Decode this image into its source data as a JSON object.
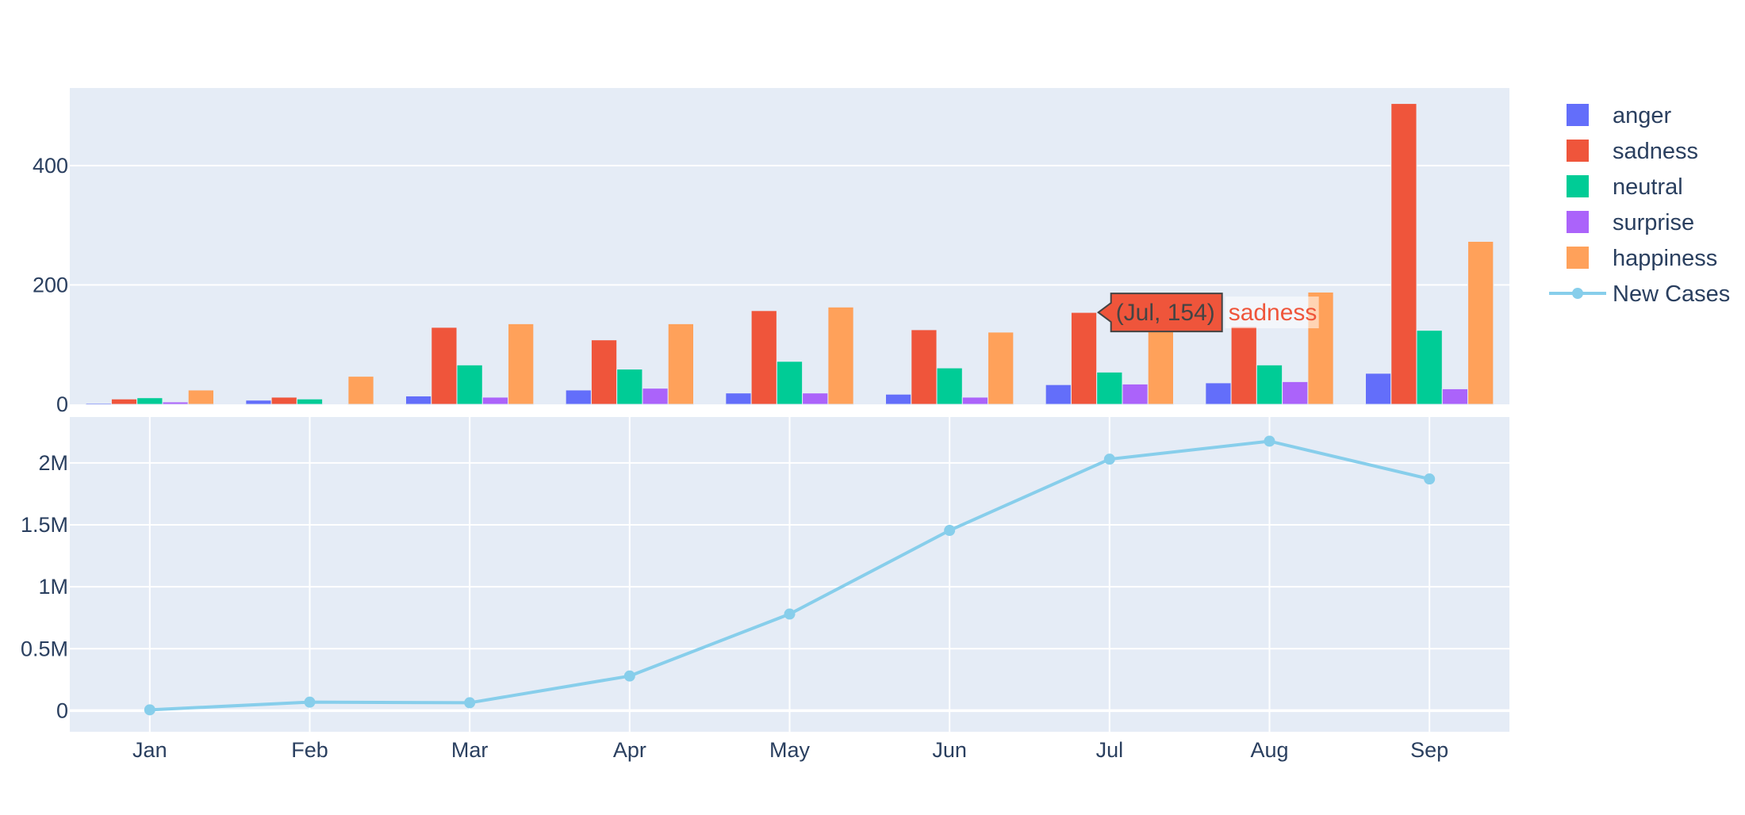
{
  "chart_data": [
    {
      "type": "bar",
      "categories": [
        "Jan",
        "Feb",
        "Mar",
        "Apr",
        "May",
        "Jun",
        "Jul",
        "Aug",
        "Sep"
      ],
      "series": [
        {
          "name": "anger",
          "color": "#636efa",
          "values": [
            2,
            7,
            14,
            24,
            19,
            17,
            33,
            36,
            52
          ]
        },
        {
          "name": "sadness",
          "color": "#ef553b",
          "values": [
            9,
            12,
            129,
            108,
            157,
            125,
            154,
            130,
            504
          ]
        },
        {
          "name": "neutral",
          "color": "#00cc96",
          "values": [
            11,
            9,
            66,
            59,
            72,
            61,
            54,
            66,
            124
          ]
        },
        {
          "name": "surprise",
          "color": "#ab63fa",
          "values": [
            4,
            0,
            12,
            27,
            19,
            12,
            34,
            38,
            26
          ]
        },
        {
          "name": "happiness",
          "color": "#ffa15a",
          "values": [
            24,
            47,
            135,
            135,
            163,
            121,
            130,
            188,
            273
          ]
        }
      ],
      "yticks": [
        "0",
        "200",
        "400"
      ],
      "ytick_values": [
        0,
        200,
        400
      ],
      "ylim": [
        0,
        530
      ],
      "grid": true
    },
    {
      "type": "line",
      "categories": [
        "Jan",
        "Feb",
        "Mar",
        "Apr",
        "May",
        "Jun",
        "Jul",
        "Aug",
        "Sep"
      ],
      "series": [
        {
          "name": "New Cases",
          "color": "#87ceeb",
          "values": [
            7000,
            69000,
            64000,
            280000,
            780000,
            1455000,
            2030000,
            2175000,
            1870000
          ]
        }
      ],
      "yticks": [
        "0",
        "0.5M",
        "1M",
        "1.5M",
        "2M"
      ],
      "ytick_values": [
        0,
        500000,
        1000000,
        1500000,
        2000000
      ],
      "ylim": [
        -170000,
        2370000
      ],
      "grid": true
    }
  ],
  "legend": {
    "placement": "right",
    "items": [
      "anger",
      "sadness",
      "neutral",
      "surprise",
      "happiness",
      "New Cases"
    ]
  },
  "hover": {
    "text": "(Jul, 154)",
    "series": "sadness",
    "category": "Jul",
    "value": 154
  },
  "colors": {
    "plot_bg": "#e5ecf6",
    "grid": "#ffffff",
    "text": "#2a3f5f"
  }
}
